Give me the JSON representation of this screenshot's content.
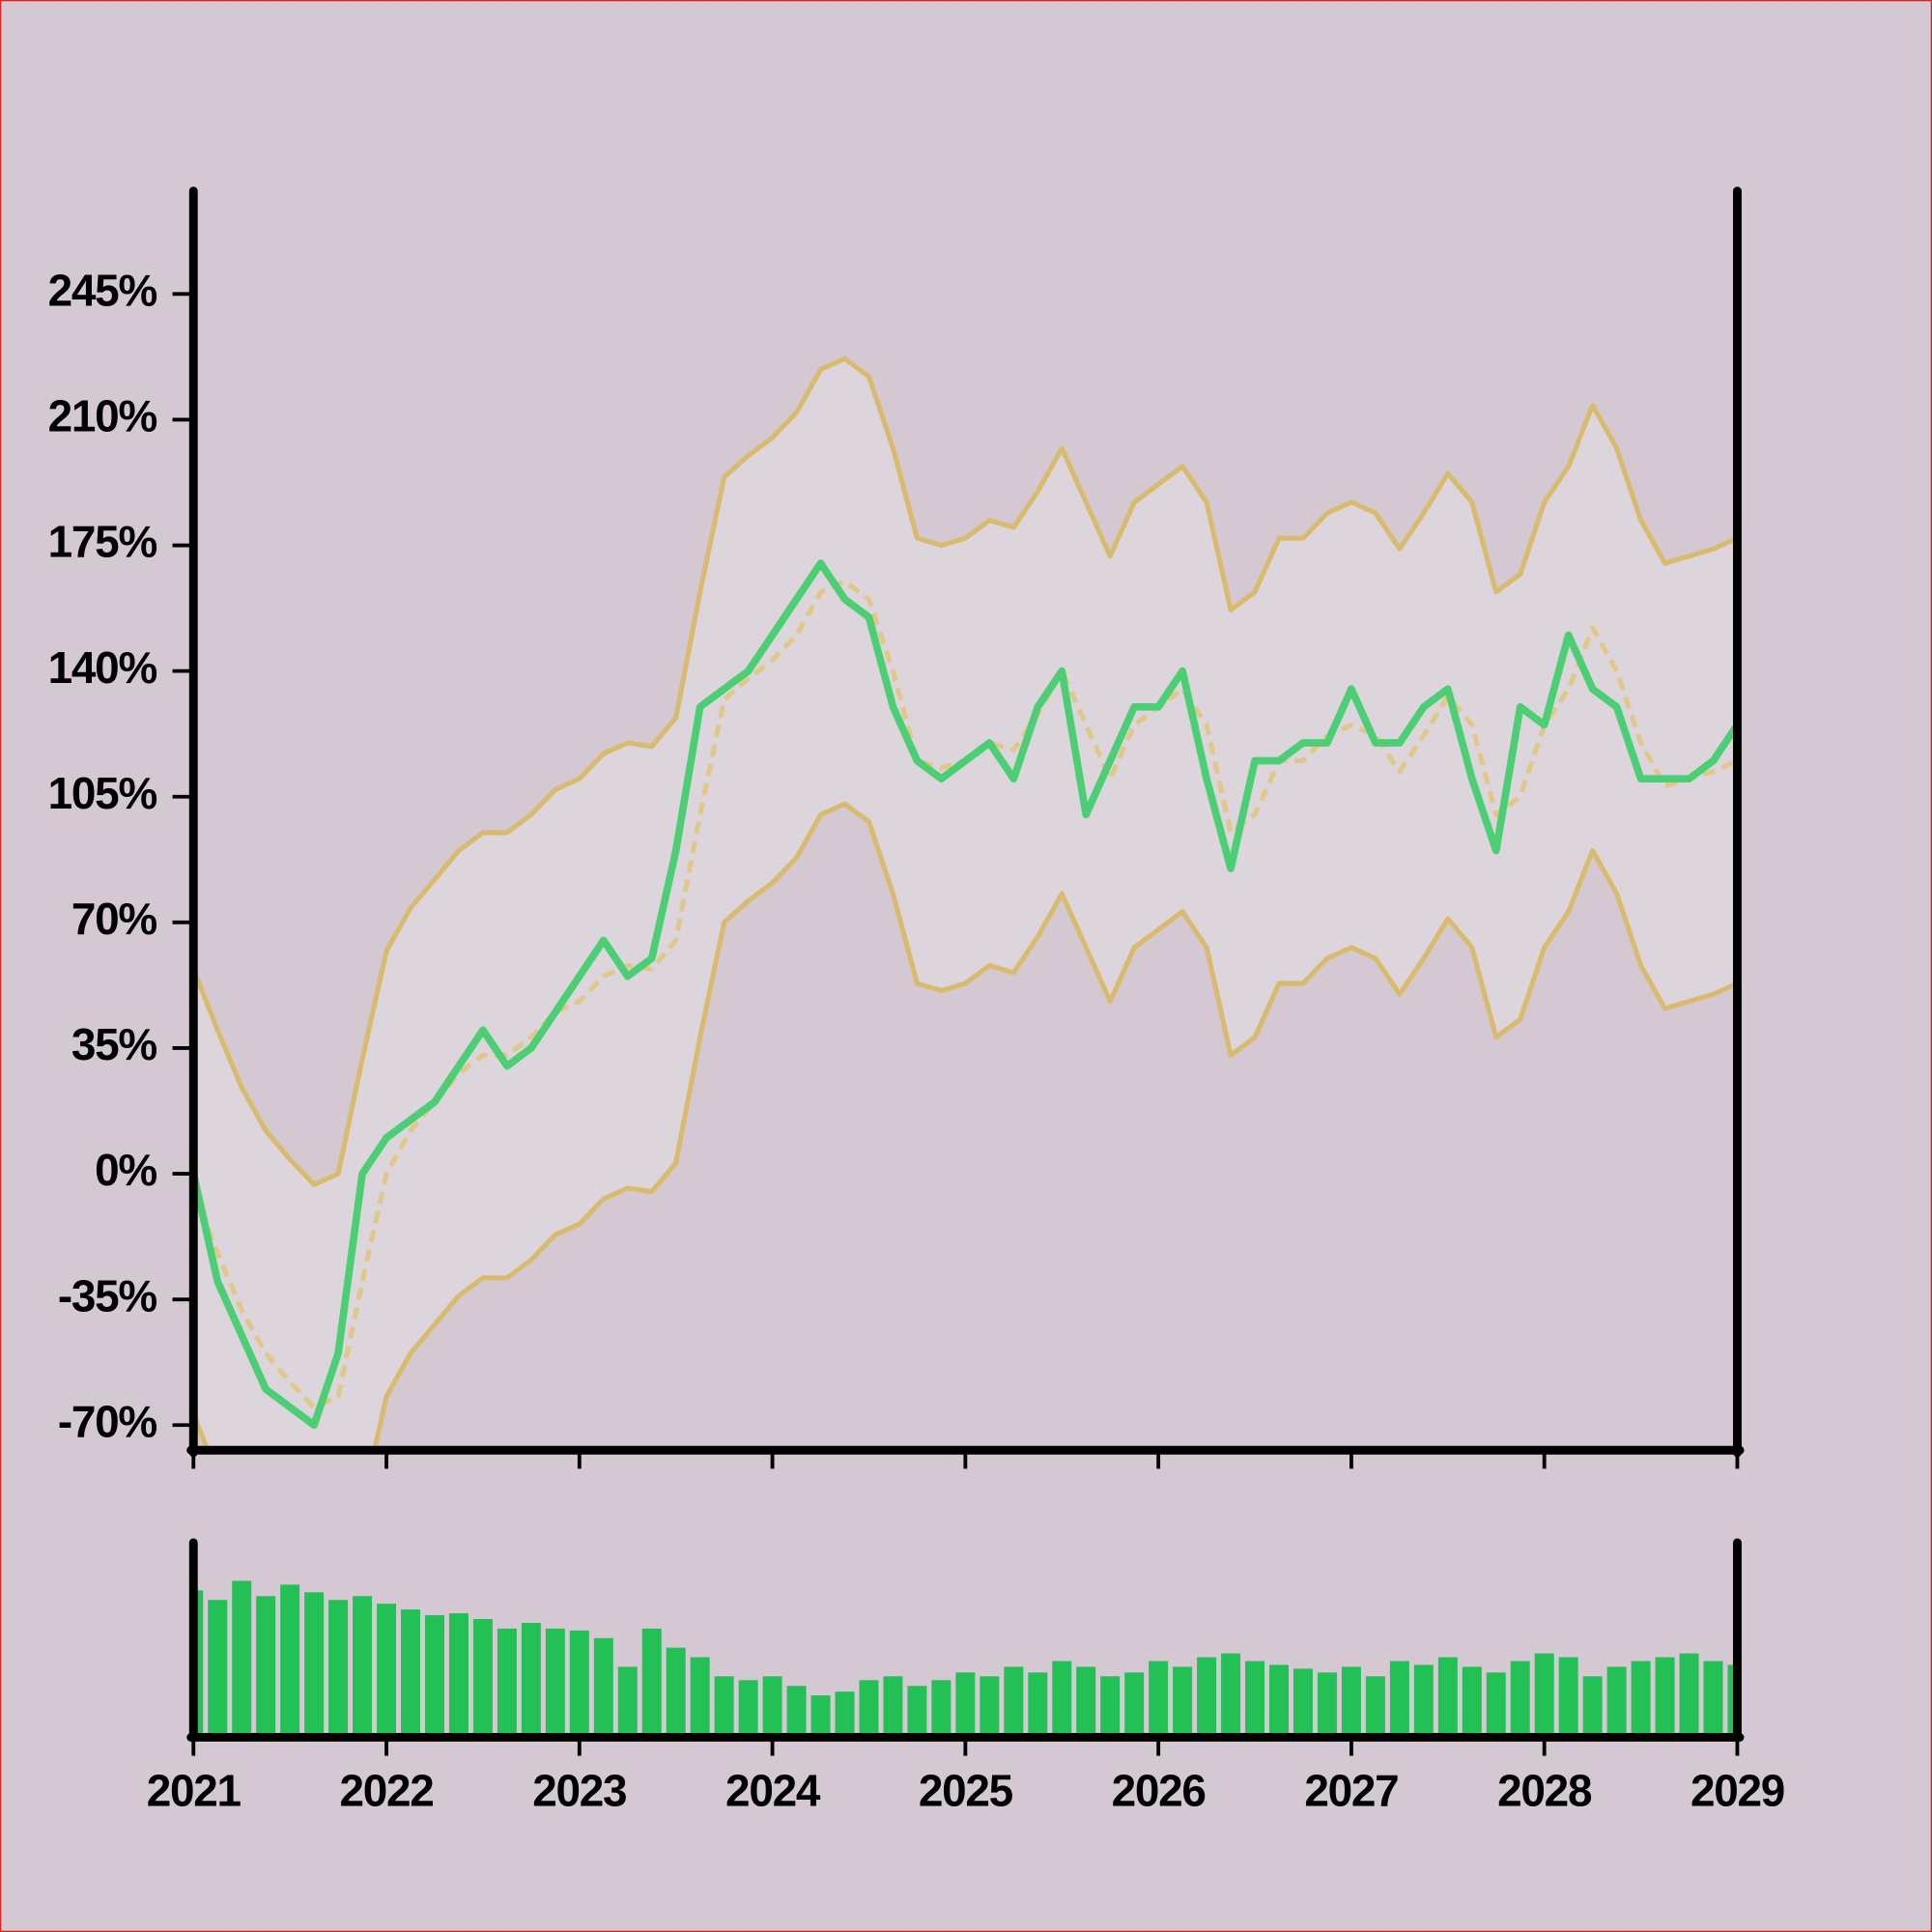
{
  "chart_data": [
    {
      "type": "line",
      "x": [
        2021,
        2021.125,
        2021.25,
        2021.375,
        2021.5,
        2021.625,
        2021.75,
        2021.875,
        2022,
        2022.125,
        2022.25,
        2022.375,
        2022.5,
        2022.625,
        2022.75,
        2022.875,
        2023,
        2023.125,
        2023.25,
        2023.375,
        2023.5,
        2023.625,
        2023.75,
        2023.875,
        2024,
        2024.125,
        2024.25,
        2024.375,
        2024.5,
        2024.625,
        2024.75,
        2024.875,
        2025,
        2025.125,
        2025.25,
        2025.375,
        2025.5,
        2025.625,
        2025.75,
        2025.875,
        2026,
        2026.125,
        2026.25,
        2026.375,
        2026.5,
        2026.625,
        2026.75,
        2026.875,
        2027,
        2027.125,
        2027.25,
        2027.375,
        2027.5,
        2027.625,
        2027.75,
        2027.875,
        2028,
        2028.125,
        2028.25,
        2028.375,
        2028.5,
        2028.625,
        2028.75,
        2028.875,
        2029
      ],
      "xlim": [
        2021,
        2029
      ],
      "xticks": [
        2021,
        2022,
        2023,
        2024,
        2025,
        2026,
        2027,
        2028,
        2029
      ],
      "ylim": [
        -77,
        273
      ],
      "yticks": [
        {
          "value": -70,
          "label": "-70%"
        },
        {
          "value": -35,
          "label": "-35%"
        },
        {
          "value": 0,
          "label": "0%"
        },
        {
          "value": 35,
          "label": "35%"
        },
        {
          "value": 70,
          "label": "70%"
        },
        {
          "value": 105,
          "label": "105%"
        },
        {
          "value": 140,
          "label": "140%"
        },
        {
          "value": 175,
          "label": "175%"
        },
        {
          "value": 210,
          "label": "210%"
        },
        {
          "value": 245,
          "label": "245%"
        }
      ],
      "band": {
        "color": "#d8bb6e",
        "fill": "#ddd5dc",
        "upper": [
          57,
          40,
          24,
          12,
          4,
          -3,
          0,
          32,
          62,
          74,
          82,
          90,
          95,
          95,
          100,
          107,
          110,
          117,
          120,
          119,
          127,
          162,
          194,
          200,
          205,
          212,
          224,
          227,
          222,
          202,
          177,
          175,
          177,
          182,
          180,
          190,
          202,
          187,
          172,
          187,
          192,
          197,
          187,
          157,
          162,
          177,
          177,
          184,
          187,
          184,
          174,
          184,
          195,
          187,
          162,
          167,
          187,
          197,
          214,
          202,
          182,
          170,
          172,
          174,
          177
        ],
        "lower": [
          -67,
          -84,
          -100,
          -112,
          -120,
          -127,
          -124,
          -92,
          -62,
          -50,
          -42,
          -34,
          -29,
          -29,
          -24,
          -17,
          -14,
          -7,
          -4,
          -5,
          3,
          38,
          70,
          76,
          81,
          88,
          100,
          103,
          98,
          78,
          53,
          51,
          53,
          58,
          56,
          66,
          78,
          63,
          48,
          63,
          68,
          73,
          63,
          33,
          38,
          53,
          53,
          60,
          63,
          60,
          50,
          60,
          71,
          63,
          38,
          43,
          63,
          73,
          90,
          78,
          58,
          46,
          48,
          50,
          53
        ]
      },
      "series": [
        {
          "color": "#e0c88a",
          "style": "dashed",
          "values": [
            -5,
            -22,
            -38,
            -50,
            -58,
            -65,
            -62,
            -30,
            0,
            12,
            20,
            28,
            33,
            33,
            38,
            45,
            48,
            55,
            58,
            57,
            65,
            100,
            132,
            138,
            143,
            150,
            162,
            165,
            160,
            140,
            115,
            113,
            115,
            120,
            118,
            128,
            140,
            125,
            110,
            125,
            130,
            135,
            125,
            95,
            100,
            115,
            115,
            122,
            125,
            122,
            112,
            122,
            133,
            125,
            100,
            105,
            125,
            135,
            152,
            140,
            120,
            108,
            110,
            112,
            115
          ]
        },
        {
          "color": "#4cce74",
          "style": "solid",
          "values": [
            0,
            -30,
            -45,
            -60,
            -65,
            -70,
            -50,
            0,
            10,
            15,
            20,
            30,
            40,
            30,
            35,
            45,
            55,
            65,
            55,
            60,
            90,
            130,
            135,
            140,
            150,
            160,
            170,
            160,
            155,
            130,
            115,
            110,
            115,
            120,
            110,
            130,
            140,
            100,
            115,
            130,
            130,
            140,
            110,
            85,
            115,
            115,
            120,
            120,
            135,
            120,
            120,
            130,
            135,
            110,
            90,
            130,
            125,
            150,
            135,
            130,
            110,
            110,
            110,
            115,
            125
          ]
        }
      ]
    },
    {
      "type": "bar",
      "color": "#22c055",
      "ylim": [
        0,
        100
      ],
      "values": [
        75,
        70,
        80,
        72,
        78,
        74,
        70,
        72,
        68,
        65,
        62,
        63,
        60,
        55,
        58,
        55,
        54,
        50,
        35,
        55,
        45,
        40,
        30,
        28,
        30,
        25,
        20,
        22,
        28,
        30,
        25,
        28,
        32,
        30,
        35,
        32,
        38,
        35,
        30,
        32,
        38,
        35,
        40,
        42,
        38,
        36,
        34,
        32,
        35,
        30,
        38,
        36,
        40,
        35,
        32,
        38,
        42,
        40,
        30,
        35,
        38,
        40,
        42,
        38,
        36
      ]
    }
  ]
}
